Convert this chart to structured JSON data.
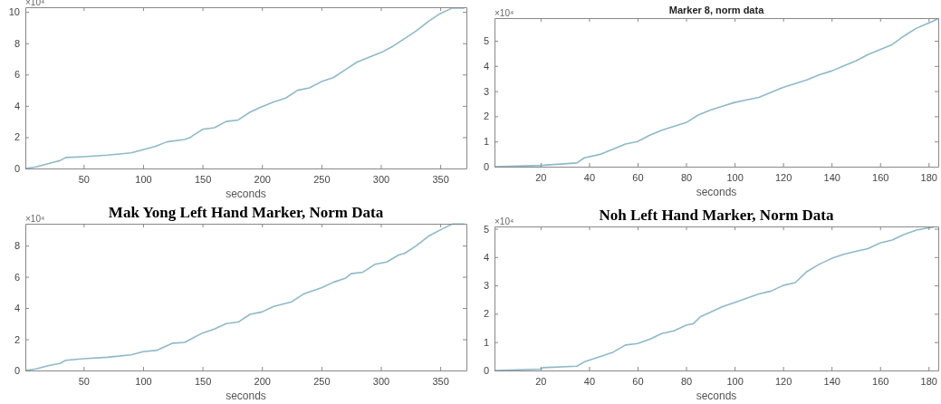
{
  "chart_data": [
    {
      "type": "line",
      "xlabel": "seconds",
      "annotations": [
        "×10⁴"
      ],
      "xlim": [
        1,
        372
      ],
      "ylim": [
        0,
        10.3
      ],
      "xticks": [
        50,
        100,
        150,
        200,
        250,
        300,
        350
      ],
      "yticks": [
        0,
        2,
        4,
        6,
        8,
        10
      ],
      "grid": false,
      "line_style": "solid",
      "marker": "none",
      "series": [
        {
          "color": "#8fb9c8",
          "x": [
            1,
            10,
            20,
            25,
            30,
            35,
            50,
            70,
            90,
            100,
            110,
            120,
            135,
            140,
            150,
            160,
            170,
            180,
            190,
            200,
            210,
            220,
            230,
            240,
            250,
            260,
            270,
            280,
            290,
            300,
            310,
            320,
            330,
            340,
            350,
            360,
            370
          ],
          "values": [
            0,
            0.1,
            0.3,
            0.4,
            0.5,
            0.7,
            0.75,
            0.85,
            1.0,
            1.2,
            1.4,
            1.7,
            1.85,
            2.0,
            2.5,
            2.6,
            3.0,
            3.1,
            3.6,
            3.95,
            4.25,
            4.5,
            5.0,
            5.15,
            5.55,
            5.8,
            6.3,
            6.8,
            7.1,
            7.4,
            7.8,
            8.3,
            8.8,
            9.4,
            9.9,
            10.25,
            10.25
          ]
        }
      ]
    },
    {
      "type": "line",
      "title": "Marker 8, norm data",
      "xlabel": "seconds",
      "annotations": [
        "×10⁴"
      ],
      "xlim": [
        1,
        184
      ],
      "ylim": [
        0,
        5.9
      ],
      "xticks": [
        20,
        40,
        60,
        80,
        100,
        120,
        140,
        160,
        180
      ],
      "yticks": [
        0,
        1,
        2,
        3,
        4,
        5
      ],
      "grid": false,
      "line_style": "solid",
      "marker": "none",
      "series": [
        {
          "color": "#8fb9c8",
          "x": [
            1,
            20,
            35,
            38,
            45,
            50,
            55,
            60,
            65,
            70,
            75,
            80,
            85,
            90,
            95,
            100,
            105,
            110,
            115,
            120,
            125,
            130,
            135,
            140,
            145,
            150,
            155,
            160,
            165,
            170,
            175,
            180,
            184
          ],
          "values": [
            0,
            0.05,
            0.15,
            0.35,
            0.5,
            0.7,
            0.9,
            1.0,
            1.25,
            1.45,
            1.6,
            1.75,
            2.05,
            2.25,
            2.4,
            2.55,
            2.65,
            2.75,
            2.95,
            3.15,
            3.3,
            3.45,
            3.65,
            3.8,
            4.0,
            4.2,
            4.45,
            4.65,
            4.85,
            5.2,
            5.5,
            5.7,
            5.88
          ]
        }
      ]
    },
    {
      "type": "line",
      "title": "Mak Yong Left Hand Marker, Norm Data",
      "xlabel": "seconds",
      "annotations": [
        "×10⁴"
      ],
      "xlim": [
        1,
        372
      ],
      "ylim": [
        0,
        9.4
      ],
      "xticks": [
        50,
        100,
        150,
        200,
        250,
        300,
        350
      ],
      "yticks": [
        0,
        2,
        4,
        6,
        8
      ],
      "grid": false,
      "line_style": "solid",
      "marker": "none",
      "series": [
        {
          "color": "#8fb9c8",
          "x": [
            1,
            10,
            20,
            30,
            35,
            50,
            70,
            90,
            100,
            112,
            125,
            135,
            140,
            150,
            160,
            170,
            180,
            190,
            200,
            210,
            225,
            235,
            250,
            260,
            270,
            275,
            285,
            295,
            305,
            315,
            320,
            330,
            340,
            350,
            360,
            370
          ],
          "values": [
            0,
            0.1,
            0.3,
            0.45,
            0.65,
            0.75,
            0.85,
            1.0,
            1.2,
            1.3,
            1.75,
            1.8,
            2.0,
            2.4,
            2.65,
            3.0,
            3.1,
            3.6,
            3.75,
            4.1,
            4.4,
            4.9,
            5.3,
            5.65,
            5.9,
            6.2,
            6.3,
            6.8,
            6.95,
            7.4,
            7.5,
            8.0,
            8.6,
            9.0,
            9.38,
            9.38
          ]
        }
      ]
    },
    {
      "type": "line",
      "title": "Noh Left Hand Marker, Norm Data",
      "xlabel": "seconds",
      "annotations": [
        "×10⁴"
      ],
      "xlim": [
        1,
        184
      ],
      "ylim": [
        0,
        5.08
      ],
      "xticks": [
        20,
        40,
        60,
        80,
        100,
        120,
        140,
        160,
        180
      ],
      "yticks": [
        0,
        1,
        2,
        3,
        4,
        5
      ],
      "grid": false,
      "line_style": "solid",
      "marker": "none",
      "series": [
        {
          "color": "#8fb9c8",
          "x": [
            1,
            20,
            21,
            35,
            38,
            45,
            50,
            55,
            60,
            65,
            70,
            75,
            80,
            83,
            86,
            90,
            95,
            100,
            105,
            110,
            115,
            120,
            125,
            130,
            135,
            140,
            145,
            150,
            155,
            160,
            165,
            170,
            175,
            178,
            182
          ],
          "values": [
            0,
            0.05,
            0.1,
            0.15,
            0.3,
            0.5,
            0.65,
            0.9,
            0.95,
            1.1,
            1.3,
            1.4,
            1.6,
            1.65,
            1.9,
            2.05,
            2.25,
            2.4,
            2.55,
            2.7,
            2.8,
            3.0,
            3.1,
            3.5,
            3.75,
            3.95,
            4.1,
            4.2,
            4.3,
            4.5,
            4.6,
            4.8,
            4.95,
            5.0,
            5.06
          ]
        }
      ]
    }
  ]
}
